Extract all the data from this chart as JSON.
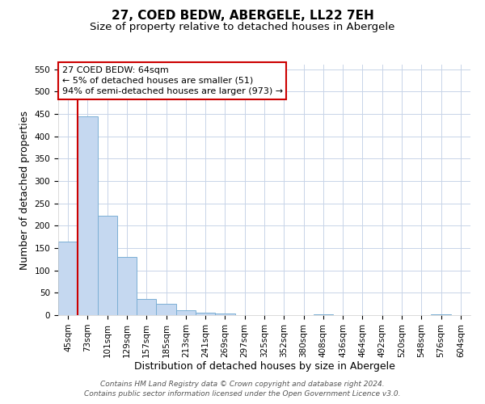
{
  "title": "27, COED BEDW, ABERGELE, LL22 7EH",
  "subtitle": "Size of property relative to detached houses in Abergele",
  "xlabel": "Distribution of detached houses by size in Abergele",
  "ylabel": "Number of detached properties",
  "categories": [
    "45sqm",
    "73sqm",
    "101sqm",
    "129sqm",
    "157sqm",
    "185sqm",
    "213sqm",
    "241sqm",
    "269sqm",
    "297sqm",
    "325sqm",
    "352sqm",
    "380sqm",
    "408sqm",
    "436sqm",
    "464sqm",
    "492sqm",
    "520sqm",
    "548sqm",
    "576sqm",
    "604sqm"
  ],
  "values": [
    165,
    445,
    222,
    130,
    36,
    25,
    11,
    6,
    4,
    0,
    0,
    0,
    0,
    2,
    0,
    0,
    0,
    0,
    0,
    2,
    0
  ],
  "bar_color": "#c5d8f0",
  "bar_edge_color": "#7bafd4",
  "ylim": [
    0,
    560
  ],
  "yticks": [
    0,
    50,
    100,
    150,
    200,
    250,
    300,
    350,
    400,
    450,
    500,
    550
  ],
  "red_line_x": 0.5,
  "annotation_line1": "27 COED BEDW: 64sqm",
  "annotation_line2": "← 5% of detached houses are smaller (51)",
  "annotation_line3": "94% of semi-detached houses are larger (973) →",
  "annotation_box_color": "#ffffff",
  "annotation_box_edge": "#cc0000",
  "footer": "Contains HM Land Registry data © Crown copyright and database right 2024.\nContains public sector information licensed under the Open Government Licence v3.0.",
  "title_fontsize": 11,
  "subtitle_fontsize": 9.5,
  "axis_label_fontsize": 9,
  "tick_fontsize": 7.5,
  "annotation_fontsize": 8,
  "footer_fontsize": 6.5,
  "background_color": "#ffffff",
  "grid_color": "#c8d4e8"
}
